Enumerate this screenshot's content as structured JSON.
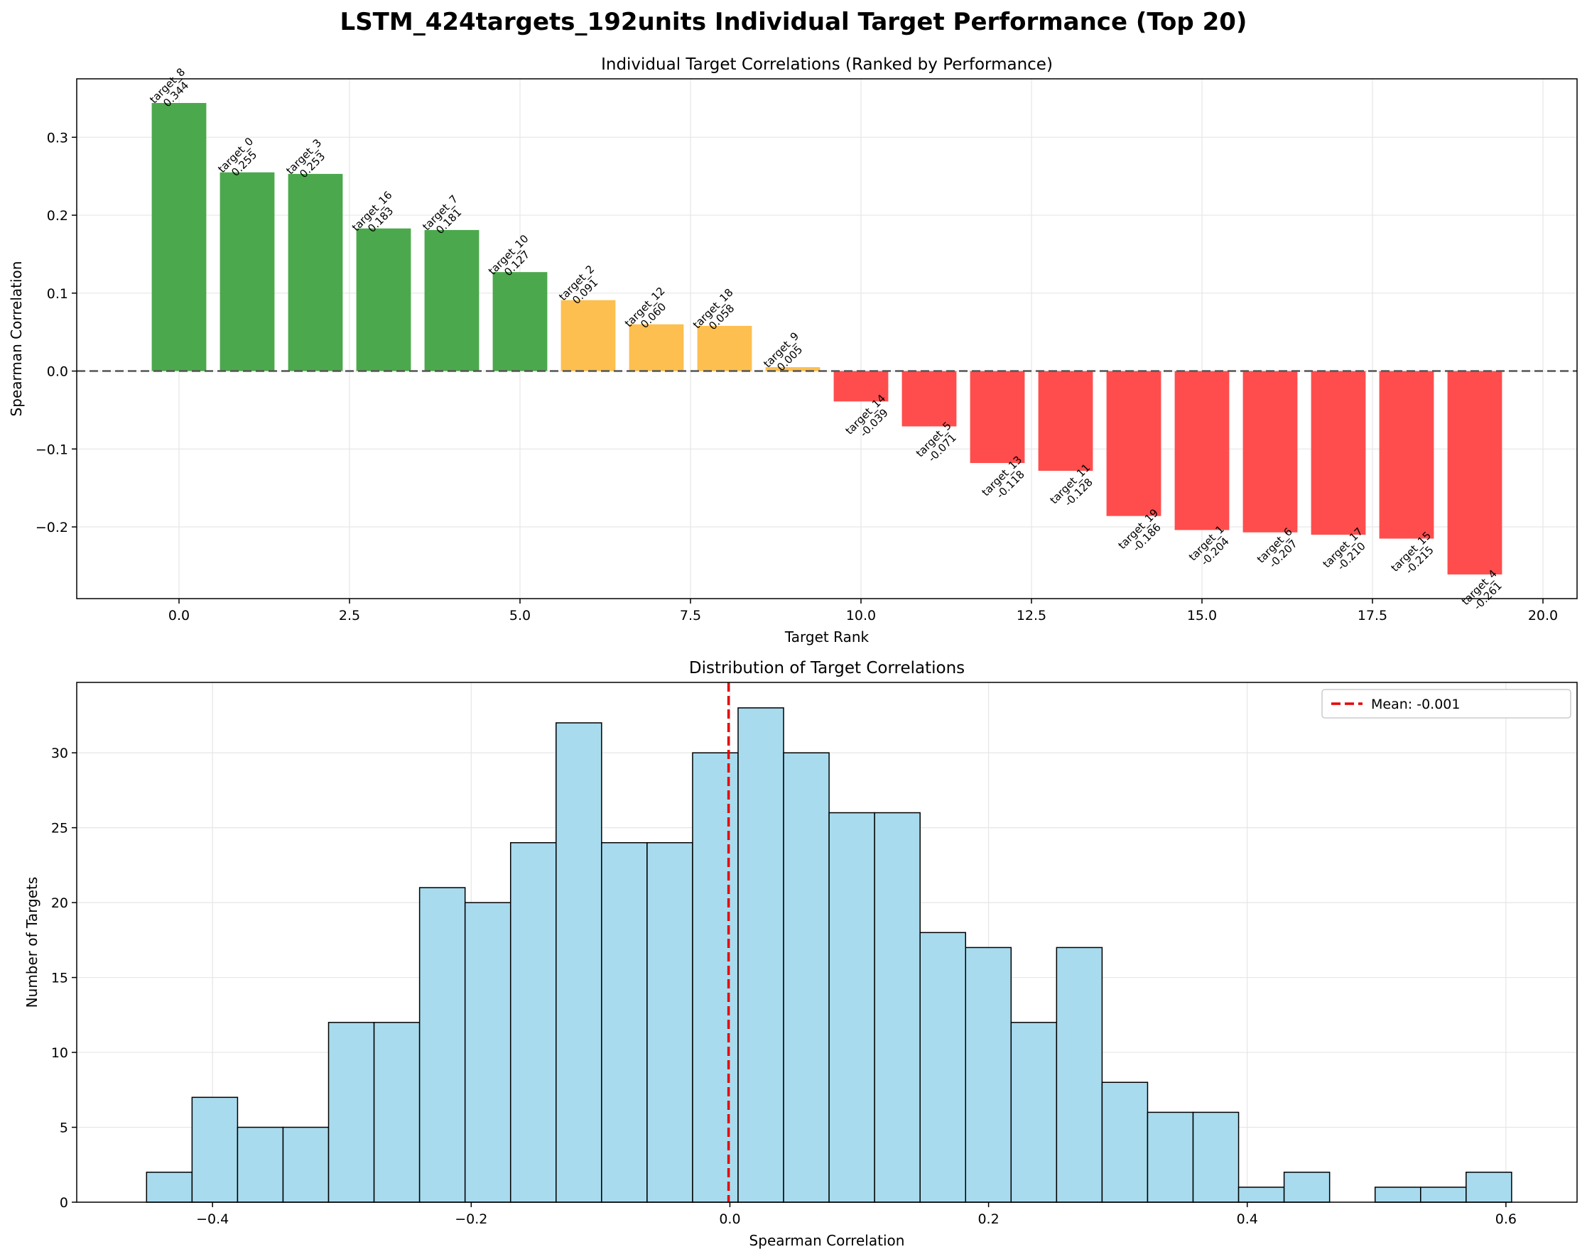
{
  "figure": {
    "suptitle": "LSTM_424targets_192units Individual Target Performance (Top 20)"
  },
  "colors": {
    "positive_strong": "#4CA84C",
    "positive_weak": "#FDBF4F",
    "negative": "#FF4D4D",
    "hist_fill": "#A9DBEE",
    "mean_line": "#E60000"
  },
  "chart_data": [
    {
      "type": "bar",
      "title": "Individual Target Correlations (Ranked by Performance)",
      "xlabel": "Target Rank",
      "ylabel": "Spearman Correlation",
      "xlim": [
        -1.5,
        20.5
      ],
      "ylim": [
        -0.292,
        0.375
      ],
      "xticks": [
        "0.0",
        "2.5",
        "5.0",
        "7.5",
        "10.0",
        "12.5",
        "15.0",
        "17.5",
        "20.0"
      ],
      "yticks": [
        "−0.2",
        "−0.1",
        "0.0",
        "0.1",
        "0.2",
        "0.3"
      ],
      "grid": true,
      "zero_line": "dashed",
      "bars": [
        {
          "rank": 0,
          "target": "target_8",
          "value": 0.344,
          "label": "0.344",
          "color": "green"
        },
        {
          "rank": 1,
          "target": "target_0",
          "value": 0.255,
          "label": "0.255",
          "color": "green"
        },
        {
          "rank": 2,
          "target": "target_3",
          "value": 0.253,
          "label": "0.253",
          "color": "green"
        },
        {
          "rank": 3,
          "target": "target_16",
          "value": 0.183,
          "label": "0.183",
          "color": "green"
        },
        {
          "rank": 4,
          "target": "target_7",
          "value": 0.181,
          "label": "0.181",
          "color": "green"
        },
        {
          "rank": 5,
          "target": "target_10",
          "value": 0.127,
          "label": "0.127",
          "color": "green"
        },
        {
          "rank": 6,
          "target": "target_2",
          "value": 0.091,
          "label": "0.091",
          "color": "orange"
        },
        {
          "rank": 7,
          "target": "target_12",
          "value": 0.06,
          "label": "0.060",
          "color": "orange"
        },
        {
          "rank": 8,
          "target": "target_18",
          "value": 0.058,
          "label": "0.058",
          "color": "orange"
        },
        {
          "rank": 9,
          "target": "target_9",
          "value": 0.005,
          "label": "0.005",
          "color": "orange"
        },
        {
          "rank": 10,
          "target": "target_14",
          "value": -0.039,
          "label": "-0.039",
          "color": "red"
        },
        {
          "rank": 11,
          "target": "target_5",
          "value": -0.071,
          "label": "-0.071",
          "color": "red"
        },
        {
          "rank": 12,
          "target": "target_13",
          "value": -0.118,
          "label": "-0.118",
          "color": "red"
        },
        {
          "rank": 13,
          "target": "target_11",
          "value": -0.128,
          "label": "-0.128",
          "color": "red"
        },
        {
          "rank": 14,
          "target": "target_19",
          "value": -0.186,
          "label": "-0.186",
          "color": "red"
        },
        {
          "rank": 15,
          "target": "target_1",
          "value": -0.204,
          "label": "-0.204",
          "color": "red"
        },
        {
          "rank": 16,
          "target": "target_6",
          "value": -0.207,
          "label": "-0.207",
          "color": "red"
        },
        {
          "rank": 17,
          "target": "target_17",
          "value": -0.21,
          "label": "-0.210",
          "color": "red"
        },
        {
          "rank": 18,
          "target": "target_15",
          "value": -0.215,
          "label": "-0.215",
          "color": "red"
        },
        {
          "rank": 19,
          "target": "target_4",
          "value": -0.261,
          "label": "-0.261",
          "color": "red"
        }
      ]
    },
    {
      "type": "histogram",
      "title": "Distribution of Target Correlations",
      "xlabel": "Spearman Correlation",
      "ylabel": "Number of Targets",
      "xlim": [
        -0.505,
        0.655
      ],
      "ylim": [
        0,
        34.7
      ],
      "xticks": [
        "−0.4",
        "−0.2",
        "0.0",
        "0.2",
        "0.4",
        "0.6"
      ],
      "yticks": [
        "0",
        "5",
        "10",
        "15",
        "20",
        "25",
        "30"
      ],
      "grid": true,
      "bin_start": -0.451,
      "bin_width": 0.03518,
      "counts": [
        2,
        7,
        5,
        5,
        12,
        12,
        21,
        20,
        24,
        32,
        24,
        24,
        30,
        33,
        30,
        26,
        26,
        18,
        17,
        12,
        17,
        8,
        6,
        6,
        1,
        2,
        0,
        1,
        1,
        2
      ],
      "mean": -0.001,
      "legend": {
        "label": "Mean: -0.001",
        "position": "upper right"
      }
    }
  ]
}
